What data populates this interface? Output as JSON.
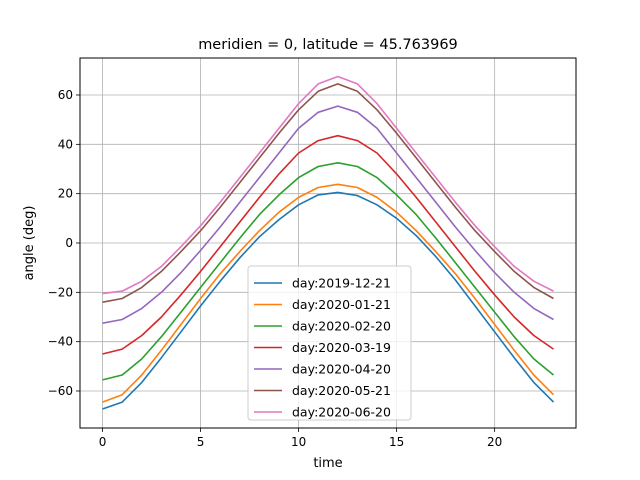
{
  "chart_data": {
    "type": "line",
    "title": "meridien = 0, latitude = 45.763969",
    "xlabel": "time",
    "ylabel": "angle (deg)",
    "xlim": [
      -1.15,
      24.15
    ],
    "ylim": [
      -75,
      75
    ],
    "xticks": [
      0,
      5,
      10,
      15,
      20
    ],
    "yticks": [
      -60,
      -40,
      -20,
      0,
      20,
      40,
      60
    ],
    "grid": true,
    "legend_position": "lower center",
    "x": [
      0,
      1,
      2,
      3,
      4,
      5,
      6,
      7,
      8,
      9,
      10,
      11,
      12,
      13,
      14,
      15,
      16,
      17,
      18,
      19,
      20,
      21,
      22,
      23
    ],
    "series": [
      {
        "name": "day:2019-12-21",
        "color": "#1f77b4",
        "values": [
          -67.3,
          -64.5,
          -56.5,
          -46.5,
          -36.0,
          -25.5,
          -15.5,
          -6.0,
          2.5,
          9.5,
          15.5,
          19.5,
          20.5,
          19.2,
          15.5,
          10.0,
          3.0,
          -5.5,
          -15.0,
          -25.5,
          -36.0,
          -46.5,
          -56.5,
          -64.5
        ]
      },
      {
        "name": "day:2020-01-21",
        "color": "#ff7f0e",
        "values": [
          -64.5,
          -61.5,
          -53.5,
          -43.5,
          -33.0,
          -22.5,
          -12.5,
          -3.5,
          5.0,
          12.5,
          18.5,
          22.5,
          23.8,
          22.5,
          18.5,
          12.5,
          5.0,
          -3.5,
          -12.5,
          -22.5,
          -33.0,
          -43.5,
          -53.5,
          -61.5
        ]
      },
      {
        "name": "day:2020-02-20",
        "color": "#2ca02c",
        "values": [
          -55.5,
          -53.5,
          -47.0,
          -38.0,
          -28.0,
          -18.0,
          -8.0,
          2.0,
          11.5,
          19.5,
          26.5,
          31.0,
          32.5,
          31.0,
          26.5,
          19.5,
          11.5,
          2.0,
          -8.0,
          -18.0,
          -28.0,
          -38.0,
          -47.0,
          -53.5
        ]
      },
      {
        "name": "day:2020-03-19",
        "color": "#d62728",
        "values": [
          -45.0,
          -43.0,
          -37.5,
          -30.0,
          -21.0,
          -11.5,
          -1.5,
          8.5,
          18.5,
          28.0,
          36.5,
          41.5,
          43.5,
          41.5,
          36.5,
          28.0,
          18.5,
          8.5,
          -1.5,
          -11.5,
          -21.0,
          -30.0,
          -37.5,
          -43.0
        ]
      },
      {
        "name": "day:2020-04-20",
        "color": "#9467bd",
        "values": [
          -32.5,
          -31.0,
          -26.5,
          -20.0,
          -12.0,
          -3.0,
          6.5,
          16.5,
          26.5,
          36.5,
          46.5,
          53.0,
          55.5,
          53.0,
          46.5,
          36.5,
          26.5,
          16.5,
          6.5,
          -3.0,
          -12.0,
          -20.0,
          -26.5,
          -31.0
        ]
      },
      {
        "name": "day:2020-05-21",
        "color": "#8c564b",
        "values": [
          -24.0,
          -22.5,
          -18.0,
          -11.5,
          -3.5,
          5.0,
          14.5,
          24.5,
          34.5,
          44.5,
          54.0,
          61.5,
          64.5,
          61.5,
          54.0,
          44.5,
          34.5,
          24.5,
          14.5,
          5.0,
          -3.5,
          -11.5,
          -18.0,
          -22.5
        ]
      },
      {
        "name": "day:2020-06-20",
        "color": "#e377c2",
        "values": [
          -20.5,
          -19.5,
          -15.5,
          -9.5,
          -1.5,
          7.0,
          16.5,
          26.5,
          36.5,
          46.5,
          56.5,
          64.5,
          67.5,
          64.5,
          56.5,
          46.5,
          36.5,
          26.5,
          16.5,
          7.0,
          -1.5,
          -9.5,
          -15.5,
          -19.5
        ]
      }
    ]
  }
}
